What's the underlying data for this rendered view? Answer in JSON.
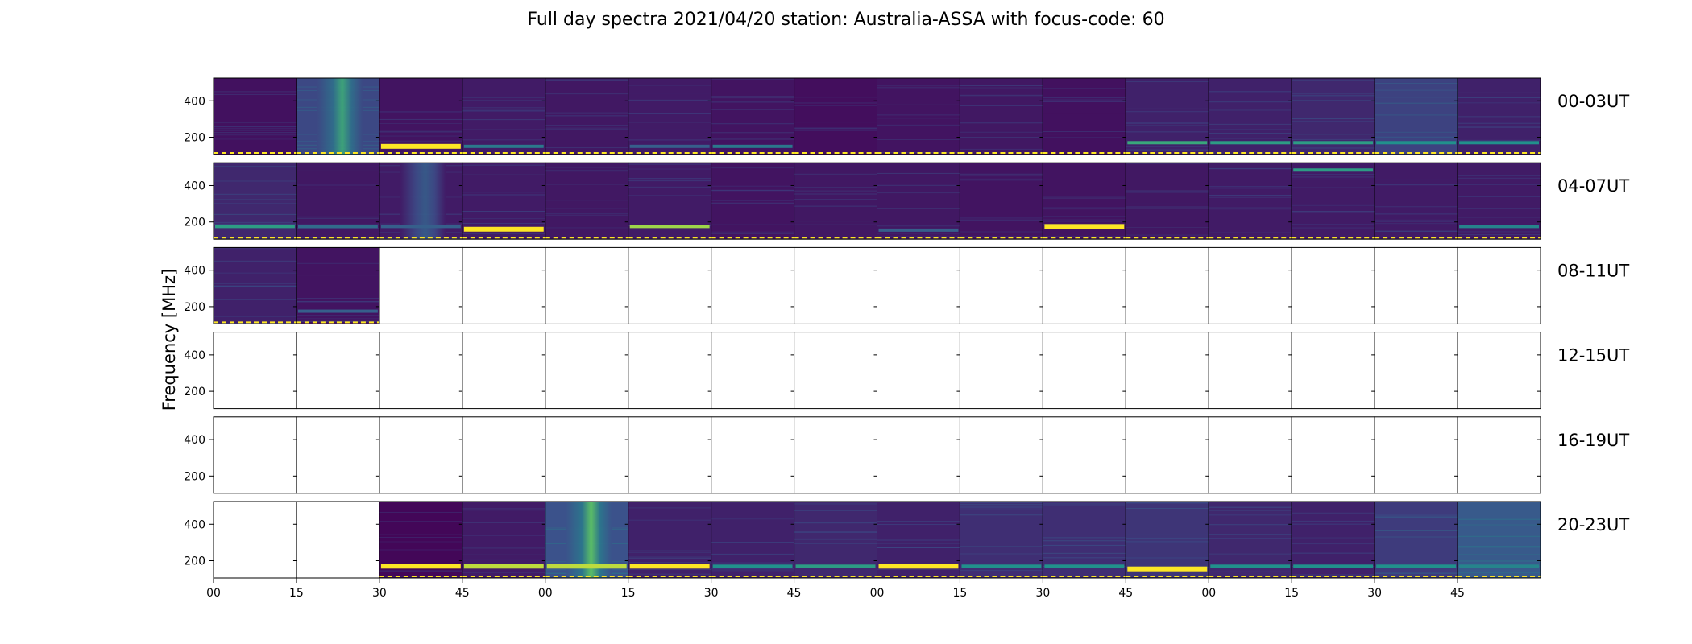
{
  "chart_data": {
    "type": "heatmap",
    "title": "Full day spectra 2021/04/20 station: Australia-ASSA with focus-code: 60",
    "ylabel": "Frequency [MHz]",
    "yticks": [
      200,
      400
    ],
    "ylim": [
      105,
      525
    ],
    "xticklabels": [
      "00",
      "15",
      "30",
      "45",
      "00",
      "15",
      "30",
      "45",
      "00",
      "15",
      "30",
      "45",
      "00",
      "15",
      "30",
      "45"
    ],
    "panels_per_row": 16,
    "colormap": [
      "#440154",
      "#3b528b",
      "#21918c",
      "#5ec962",
      "#fde725"
    ],
    "rows": [
      {
        "label": "00-03UT",
        "panels": [
          {
            "has_data": true,
            "bg": 0.05,
            "band": null,
            "band_level": 0
          },
          {
            "has_data": true,
            "bg": 0.22,
            "band": null,
            "band_level": 0,
            "vertical_bright": 0.62
          },
          {
            "has_data": true,
            "bg": 0.06,
            "band": 150,
            "band_level": 1.0
          },
          {
            "has_data": true,
            "bg": 0.08,
            "band": 150,
            "band_level": 0.4
          },
          {
            "has_data": true,
            "bg": 0.07,
            "band": null,
            "band_level": 0
          },
          {
            "has_data": true,
            "bg": 0.08,
            "band": 150,
            "band_level": 0.3
          },
          {
            "has_data": true,
            "bg": 0.06,
            "band": 150,
            "band_level": 0.4
          },
          {
            "has_data": true,
            "bg": 0.04,
            "band": null,
            "band_level": 0
          },
          {
            "has_data": true,
            "bg": 0.06,
            "band": null,
            "band_level": 0
          },
          {
            "has_data": true,
            "bg": 0.07,
            "band": null,
            "band_level": 0
          },
          {
            "has_data": true,
            "bg": 0.05,
            "band": null,
            "band_level": 0
          },
          {
            "has_data": true,
            "bg": 0.1,
            "band": 170,
            "band_level": 0.6
          },
          {
            "has_data": true,
            "bg": 0.1,
            "band": 170,
            "band_level": 0.55
          },
          {
            "has_data": true,
            "bg": 0.12,
            "band": 170,
            "band_level": 0.55
          },
          {
            "has_data": true,
            "bg": 0.2,
            "band": 170,
            "band_level": 0.5
          },
          {
            "has_data": true,
            "bg": 0.1,
            "band": 170,
            "band_level": 0.5
          }
        ]
      },
      {
        "label": "04-07UT",
        "panels": [
          {
            "has_data": true,
            "bg": 0.12,
            "band": 175,
            "band_level": 0.55
          },
          {
            "has_data": true,
            "bg": 0.07,
            "band": 175,
            "band_level": 0.35
          },
          {
            "has_data": true,
            "bg": 0.08,
            "band": 175,
            "band_level": 0.3,
            "vertical_bright": 0.3
          },
          {
            "has_data": true,
            "bg": 0.08,
            "band": 160,
            "band_level": 1.0
          },
          {
            "has_data": true,
            "bg": 0.07,
            "band": null,
            "band_level": 0
          },
          {
            "has_data": true,
            "bg": 0.08,
            "band": 175,
            "band_level": 0.85
          },
          {
            "has_data": true,
            "bg": 0.06,
            "band": null,
            "band_level": 0
          },
          {
            "has_data": true,
            "bg": 0.07,
            "band": null,
            "band_level": 0
          },
          {
            "has_data": true,
            "bg": 0.07,
            "band": 155,
            "band_level": 0.3
          },
          {
            "has_data": true,
            "bg": 0.06,
            "band": null,
            "band_level": 0
          },
          {
            "has_data": true,
            "bg": 0.06,
            "band": 175,
            "band_level": 1.0
          },
          {
            "has_data": true,
            "bg": 0.07,
            "band": null,
            "band_level": 0
          },
          {
            "has_data": true,
            "bg": 0.08,
            "band": null,
            "band_level": 0
          },
          {
            "has_data": true,
            "bg": 0.08,
            "band": 485,
            "band_level": 0.55
          },
          {
            "has_data": true,
            "bg": 0.08,
            "band": null,
            "band_level": 0
          },
          {
            "has_data": true,
            "bg": 0.08,
            "band": 175,
            "band_level": 0.45
          }
        ]
      },
      {
        "label": "08-11UT",
        "panels": [
          {
            "has_data": true,
            "bg": 0.1,
            "band": null,
            "band_level": 0
          },
          {
            "has_data": true,
            "bg": 0.06,
            "band": 175,
            "band_level": 0.3
          },
          {
            "has_data": false
          },
          {
            "has_data": false
          },
          {
            "has_data": false
          },
          {
            "has_data": false
          },
          {
            "has_data": false
          },
          {
            "has_data": false
          },
          {
            "has_data": false
          },
          {
            "has_data": false
          },
          {
            "has_data": false
          },
          {
            "has_data": false
          },
          {
            "has_data": false
          },
          {
            "has_data": false
          },
          {
            "has_data": false
          },
          {
            "has_data": false
          }
        ]
      },
      {
        "label": "12-15UT",
        "panels": [
          {
            "has_data": false
          },
          {
            "has_data": false
          },
          {
            "has_data": false
          },
          {
            "has_data": false
          },
          {
            "has_data": false
          },
          {
            "has_data": false
          },
          {
            "has_data": false
          },
          {
            "has_data": false
          },
          {
            "has_data": false
          },
          {
            "has_data": false
          },
          {
            "has_data": false
          },
          {
            "has_data": false
          },
          {
            "has_data": false
          },
          {
            "has_data": false
          },
          {
            "has_data": false
          },
          {
            "has_data": false
          }
        ]
      },
      {
        "label": "16-19UT",
        "panels": [
          {
            "has_data": false
          },
          {
            "has_data": false
          },
          {
            "has_data": false
          },
          {
            "has_data": false
          },
          {
            "has_data": false
          },
          {
            "has_data": false
          },
          {
            "has_data": false
          },
          {
            "has_data": false
          },
          {
            "has_data": false
          },
          {
            "has_data": false
          },
          {
            "has_data": false
          },
          {
            "has_data": false
          },
          {
            "has_data": false
          },
          {
            "has_data": false
          },
          {
            "has_data": false
          },
          {
            "has_data": false
          }
        ]
      },
      {
        "label": "20-23UT",
        "panels": [
          {
            "has_data": false
          },
          {
            "has_data": false
          },
          {
            "has_data": true,
            "bg": 0.02,
            "band": 170,
            "band_level": 1.0
          },
          {
            "has_data": true,
            "bg": 0.08,
            "band": 170,
            "band_level": 0.9
          },
          {
            "has_data": true,
            "bg": 0.25,
            "band": 170,
            "band_level": 0.9,
            "vertical_bright": 0.75
          },
          {
            "has_data": true,
            "bg": 0.1,
            "band": 170,
            "band_level": 1.0
          },
          {
            "has_data": true,
            "bg": 0.1,
            "band": 170,
            "band_level": 0.5
          },
          {
            "has_data": true,
            "bg": 0.12,
            "band": 170,
            "band_level": 0.55
          },
          {
            "has_data": true,
            "bg": 0.1,
            "band": 170,
            "band_level": 1.0
          },
          {
            "has_data": true,
            "bg": 0.14,
            "band": 170,
            "band_level": 0.5
          },
          {
            "has_data": true,
            "bg": 0.14,
            "band": 170,
            "band_level": 0.5
          },
          {
            "has_data": true,
            "bg": 0.16,
            "band": 155,
            "band_level": 1.0
          },
          {
            "has_data": true,
            "bg": 0.12,
            "band": 170,
            "band_level": 0.5
          },
          {
            "has_data": true,
            "bg": 0.1,
            "band": 170,
            "band_level": 0.5
          },
          {
            "has_data": true,
            "bg": 0.18,
            "band": 170,
            "band_level": 0.5
          },
          {
            "has_data": true,
            "bg": 0.28,
            "band": 170,
            "band_level": 0.45
          }
        ]
      }
    ]
  }
}
